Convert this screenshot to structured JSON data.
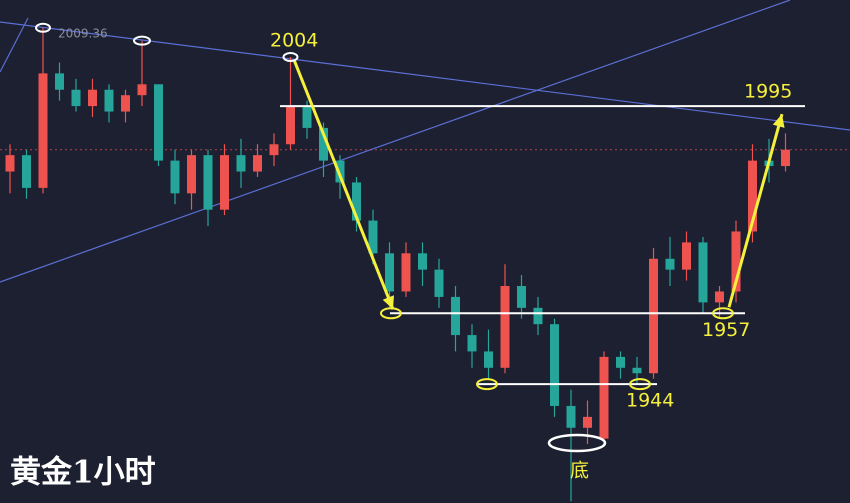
{
  "chart_data": {
    "type": "candlestick",
    "title": "黄金1小时",
    "open": [
      1983,
      1986,
      1980,
      2001,
      1998,
      1995,
      1998,
      1994,
      1997,
      1999,
      1985,
      1979,
      1986,
      1976,
      1986,
      1983,
      1986,
      1988,
      1995,
      1991,
      1985,
      1981,
      1974,
      1968,
      1961,
      1968,
      1965,
      1960,
      1953,
      1950,
      1947,
      1962,
      1958,
      1955,
      1940,
      1936,
      1934,
      1949,
      1947,
      1946,
      1967,
      1965,
      1970,
      1959,
      1961,
      1972,
      1985,
      1984
    ],
    "high": [
      1988,
      1987,
      2009.36,
      2003,
      2000,
      2000,
      1999,
      1998,
      2007,
      1999,
      1987,
      1987,
      1987,
      1988,
      1989,
      1988,
      1990,
      2004,
      1996,
      1992,
      1986,
      1982,
      1976,
      1970,
      1970,
      1970,
      1967,
      1962,
      1955,
      1954,
      1966,
      1964,
      1960,
      1956,
      1943,
      1941,
      1950,
      1950,
      1949,
      1969,
      1971,
      1972,
      1971,
      1962,
      1974,
      1988,
      1989,
      1990
    ],
    "low": [
      1979,
      1978,
      1979,
      1996,
      1994,
      1993,
      1992,
      1992,
      1995,
      1984,
      1977,
      1976,
      1973,
      1975,
      1980,
      1982,
      1984,
      1987,
      1989,
      1982,
      1978,
      1972,
      1966,
      1958,
      1960,
      1962,
      1958,
      1950,
      1947,
      1945,
      1946,
      1956,
      1953,
      1938,
      1922.5,
      1933,
      1933,
      1945,
      1944,
      1945,
      1962,
      1963,
      1957,
      1956,
      1959,
      1970,
      1981,
      1983
    ],
    "close": [
      1986,
      1980,
      2001,
      1998,
      1995,
      1998,
      1994,
      1997,
      1999,
      1985,
      1979,
      1986,
      1976,
      1986,
      1983,
      1986,
      1988,
      1995,
      1991,
      1985,
      1981,
      1974,
      1968,
      1961,
      1968,
      1965,
      1960,
      1953,
      1950,
      1947,
      1962,
      1958,
      1955,
      1940,
      1936,
      1938,
      1949,
      1947,
      1946,
      1967,
      1965,
      1970,
      1959,
      1961,
      1972,
      1985,
      1984,
      1987
    ],
    "up_color": "#ef5350",
    "down_color": "#26a69a",
    "ylim": [
      1922.2,
      2014.46
    ],
    "high_label": 2009.36,
    "peak": 2004,
    "target": 1995,
    "support_upper": 1957,
    "support_lower": 1944,
    "bottom_label": "底"
  }
}
